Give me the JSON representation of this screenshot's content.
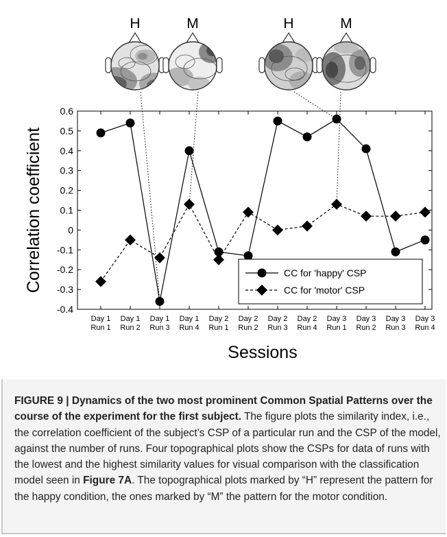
{
  "chart_data": {
    "type": "line",
    "categories": [
      "Day 1 Run 1",
      "Day 1 Run 2",
      "Day 1 Run 3",
      "Day 1 Run 4",
      "Day 2 Run 1",
      "Day 2 Run 2",
      "Day 2 Run 3",
      "Day 2 Run 4",
      "Day 3 Run 1",
      "Day 3 Run 2",
      "Day 3 Run 3",
      "Day 3 Run 4"
    ],
    "category_lines": [
      [
        "Day 1",
        "Run 1"
      ],
      [
        "Day 1",
        "Run 2"
      ],
      [
        "Day 1",
        "Run 3"
      ],
      [
        "Day 1",
        "Run 4"
      ],
      [
        "Day 2",
        "Run 1"
      ],
      [
        "Day 2",
        "Run 2"
      ],
      [
        "Day 2",
        "Run 3"
      ],
      [
        "Day 2",
        "Run 4"
      ],
      [
        "Day 3",
        "Run 1"
      ],
      [
        "Day 3",
        "Run 2"
      ],
      [
        "Day 3",
        "Run 3"
      ],
      [
        "Day 3",
        "Run 4"
      ]
    ],
    "series": [
      {
        "name": "CC for 'happy' CSP",
        "marker": "circle",
        "line": "solid",
        "values": [
          0.49,
          0.54,
          -0.36,
          0.4,
          -0.11,
          -0.13,
          0.55,
          0.47,
          0.56,
          0.41,
          -0.11,
          -0.05
        ]
      },
      {
        "name": "CC for 'motor' CSP",
        "marker": "diamond",
        "line": "dashed",
        "values": [
          -0.26,
          -0.05,
          -0.14,
          0.13,
          -0.15,
          0.09,
          0.0,
          0.02,
          0.13,
          0.07,
          0.07,
          0.09
        ]
      }
    ],
    "title": "",
    "xlabel": "Sessions",
    "ylabel": "Correlation coefficient",
    "ylim": [
      -0.4,
      0.6
    ],
    "yticks": [
      "-0.4",
      "-0.3",
      "-0.2",
      "-0.1",
      "0",
      "0.1",
      "0.2",
      "0.3",
      "0.4",
      "0.5",
      "0.6"
    ],
    "grid": false,
    "legend_position": "bottom-right",
    "headmaps": [
      {
        "label": "H",
        "linked_category": "Day 1 Run 3",
        "series": "happy"
      },
      {
        "label": "M",
        "linked_category": "Day 1 Run 4",
        "series": "motor"
      },
      {
        "label": "H",
        "linked_category": "Day 3 Run 1",
        "series": "happy"
      },
      {
        "label": "M",
        "linked_category": "Day 3 Run 1",
        "series": "motor"
      }
    ]
  },
  "caption": {
    "title": "FIGURE 9 | Dynamics of the two most prominent Common Spatial Patterns over the course of the experiment for the first subject.",
    "text_1": " The figure plots the similarity index, i.e., the correlation coefficient of the subject’s CSP of a particular run and the CSP of the model, against the number of runs. Four topographical plots show the CSPs for data of runs with the lowest and the highest similarity values for visual comparison with the classification model seen in ",
    "figure_ref": "Figure 7A",
    "text_2": ". The topographical plots marked by “H” represent the pattern for the happy condition, the ones marked by “M” the pattern for the motor condition."
  },
  "colors": {
    "line": "#000000",
    "head_fill": "#e4e4e4",
    "caption_bg": "#f4f4f4",
    "caption_border": "#c8c8c8"
  }
}
